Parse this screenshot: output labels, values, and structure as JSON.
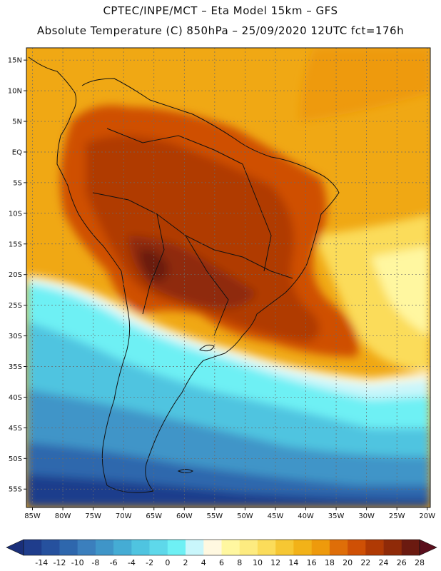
{
  "title": {
    "line1": "CPTEC/INPE/MCT –   Eta Model 15km – GFS",
    "line2": "Absolute Temperature (C) 850hPa – 25/09/2020 12UTC fct=176h"
  },
  "map": {
    "extent": {
      "lon_min": -86,
      "lon_max": -19.5,
      "lat_min": -58,
      "lat_max": 17
    },
    "lat_ticks": [
      {
        "value": 15,
        "label": "15N"
      },
      {
        "value": 10,
        "label": "10N"
      },
      {
        "value": 5,
        "label": "5N"
      },
      {
        "value": 0,
        "label": "EQ"
      },
      {
        "value": -5,
        "label": "5S"
      },
      {
        "value": -10,
        "label": "10S"
      },
      {
        "value": -15,
        "label": "15S"
      },
      {
        "value": -20,
        "label": "20S"
      },
      {
        "value": -25,
        "label": "25S"
      },
      {
        "value": -30,
        "label": "30S"
      },
      {
        "value": -35,
        "label": "35S"
      },
      {
        "value": -40,
        "label": "40S"
      },
      {
        "value": -45,
        "label": "45S"
      },
      {
        "value": -50,
        "label": "50S"
      },
      {
        "value": -55,
        "label": "55S"
      }
    ],
    "lon_ticks": [
      {
        "value": -85,
        "label": "85W"
      },
      {
        "value": -80,
        "label": "80W"
      },
      {
        "value": -75,
        "label": "75W"
      },
      {
        "value": -70,
        "label": "70W"
      },
      {
        "value": -65,
        "label": "65W"
      },
      {
        "value": -60,
        "label": "60W"
      },
      {
        "value": -55,
        "label": "55W"
      },
      {
        "value": -50,
        "label": "50W"
      },
      {
        "value": -45,
        "label": "45W"
      },
      {
        "value": -40,
        "label": "40W"
      },
      {
        "value": -35,
        "label": "35W"
      },
      {
        "value": -30,
        "label": "30W"
      },
      {
        "value": -25,
        "label": "25W"
      },
      {
        "value": -20,
        "label": "20W"
      }
    ]
  },
  "colorbar": {
    "colors": [
      "#1f3d8c",
      "#26519e",
      "#2e67ad",
      "#3b7fbd",
      "#3f95c8",
      "#45acd4",
      "#4fc4e0",
      "#5ed8ea",
      "#6ef0f4",
      "#c9f6fb",
      "#fff8e0",
      "#fff7a0",
      "#fdeb80",
      "#fbdc5a",
      "#f6c733",
      "#f2b218",
      "#ee9a0c",
      "#df6e08",
      "#cf5005",
      "#b03a04",
      "#8f2a08",
      "#6b1a10"
    ],
    "low_arrow_color": "#1a2f7a",
    "high_arrow_color": "#5a0e1c",
    "labels": [
      "-14",
      "-12",
      "-10",
      "-8",
      "-6",
      "-4",
      "-2",
      "0",
      "2",
      "4",
      "6",
      "8",
      "10",
      "12",
      "14",
      "16",
      "18",
      "20",
      "22",
      "24",
      "26",
      "28"
    ]
  },
  "field_colors": {
    "ocean_warm": "#f0a814",
    "ocean_warmer": "#ee9a0c",
    "land_hot": "#cf5005",
    "land_hotter": "#b03a04",
    "land_core": "#8f2a08",
    "land_max": "#6b1a10",
    "sub_yellow": "#fbdc5a",
    "pale": "#fff7a0",
    "cream": "#fff8e0",
    "cyan_light": "#c9f6fb",
    "cyan": "#6ef0f4",
    "aqua": "#4fc4e0",
    "blue_mid": "#3f95c8",
    "blue_dark": "#2e67ad",
    "blue_deep": "#1f3d8c"
  }
}
